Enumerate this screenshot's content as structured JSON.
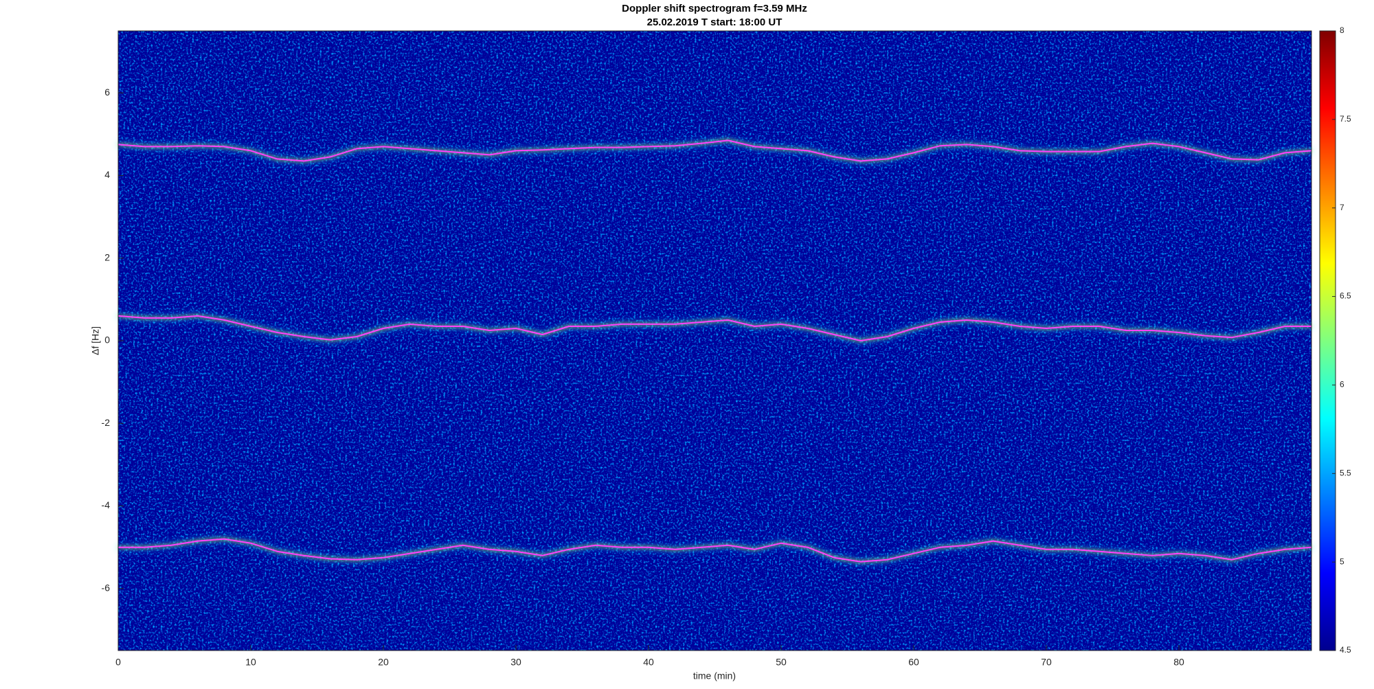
{
  "chart_data": {
    "type": "spectrogram",
    "title": "Doppler shift spectrogram f=3.59 MHz",
    "subtitle": "25.02.2019   T start: 18:00 UT",
    "x_label": "time (min)",
    "y_label": "Δf [Hz]",
    "xlim": [
      0,
      90
    ],
    "xticks": [
      0,
      10,
      20,
      30,
      40,
      50,
      60,
      70,
      80
    ],
    "ylim": [
      -7.5,
      7.5
    ],
    "yticks": [
      -6,
      -4,
      -2,
      0,
      2,
      4,
      6
    ],
    "colorbar": {
      "lim": [
        4.5,
        8
      ],
      "ticks": [
        4.5,
        5,
        5.5,
        6,
        6.5,
        7,
        7.5,
        8
      ]
    },
    "x": [
      0,
      2,
      4,
      6,
      8,
      10,
      12,
      14,
      16,
      18,
      20,
      22,
      24,
      26,
      28,
      30,
      32,
      34,
      36,
      38,
      40,
      42,
      44,
      46,
      48,
      50,
      52,
      54,
      56,
      58,
      60,
      62,
      64,
      66,
      68,
      70,
      72,
      74,
      76,
      78,
      80,
      82,
      84,
      86,
      88,
      90
    ],
    "series": [
      {
        "color": "#ff40ff",
        "values": [
          4.75,
          4.7,
          4.7,
          4.72,
          4.7,
          4.6,
          4.4,
          4.35,
          4.45,
          4.65,
          4.7,
          4.65,
          4.6,
          4.55,
          4.5,
          4.6,
          4.62,
          4.65,
          4.68,
          4.68,
          4.7,
          4.72,
          4.78,
          4.85,
          4.7,
          4.65,
          4.6,
          4.45,
          4.35,
          4.4,
          4.55,
          4.72,
          4.75,
          4.7,
          4.6,
          4.58,
          4.58,
          4.58,
          4.7,
          4.78,
          4.7,
          4.55,
          4.4,
          4.38,
          4.55,
          4.6
        ]
      },
      {
        "color": "#ff40ff",
        "values": [
          0.6,
          0.55,
          0.55,
          0.6,
          0.5,
          0.35,
          0.2,
          0.1,
          0.02,
          0.1,
          0.3,
          0.4,
          0.35,
          0.35,
          0.25,
          0.3,
          0.15,
          0.35,
          0.35,
          0.4,
          0.4,
          0.4,
          0.45,
          0.5,
          0.35,
          0.4,
          0.3,
          0.15,
          0.0,
          0.1,
          0.3,
          0.45,
          0.5,
          0.45,
          0.35,
          0.3,
          0.35,
          0.35,
          0.25,
          0.25,
          0.2,
          0.12,
          0.08,
          0.2,
          0.35,
          0.35
        ]
      },
      {
        "color": "#ff40ff",
        "values": [
          -5.0,
          -5.0,
          -4.95,
          -4.85,
          -4.8,
          -4.9,
          -5.1,
          -5.2,
          -5.28,
          -5.3,
          -5.25,
          -5.15,
          -5.05,
          -4.95,
          -5.05,
          -5.1,
          -5.2,
          -5.05,
          -4.95,
          -5.0,
          -5.0,
          -5.05,
          -5.0,
          -4.95,
          -5.05,
          -4.9,
          -5.0,
          -5.25,
          -5.35,
          -5.3,
          -5.15,
          -5.0,
          -4.95,
          -4.85,
          -4.95,
          -5.05,
          -5.05,
          -5.1,
          -5.15,
          -5.2,
          -5.15,
          -5.2,
          -5.3,
          -5.15,
          -5.05,
          -5.0
        ]
      }
    ]
  }
}
